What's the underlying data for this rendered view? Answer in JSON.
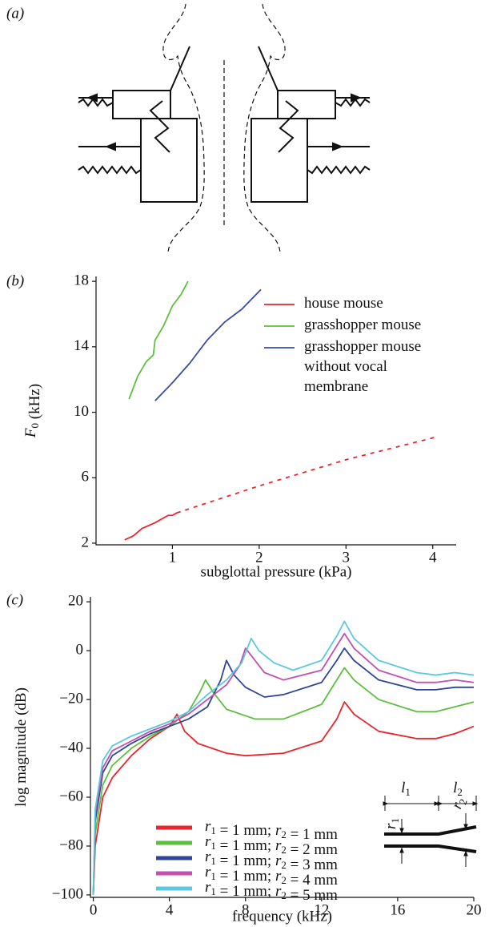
{
  "panel_a": {
    "label": "(a)"
  },
  "chart_data": [
    {
      "type": "line",
      "label": "(b)",
      "xlabel": "subglottal pressure (kPa)",
      "ylabel": "F0 (kHz)",
      "xlim": [
        0.12,
        4.27
      ],
      "xticks": [
        1,
        2,
        3,
        4
      ],
      "ylim": [
        1.9,
        18.3
      ],
      "yticks": [
        2,
        6,
        10,
        14,
        18
      ],
      "series": [
        {
          "name": "house mouse",
          "color": "#e8262b",
          "x": [
            0.45,
            0.55,
            0.65,
            0.8,
            0.95,
            1.0,
            1.05
          ],
          "values": [
            2.2,
            2.45,
            2.9,
            3.25,
            3.7,
            3.7,
            3.85
          ]
        },
        {
          "color": "#e8262b",
          "dashed": true,
          "x": [
            1.05,
            2,
            3,
            4.05
          ],
          "values": [
            3.85,
            5.5,
            7.1,
            8.5
          ]
        },
        {
          "name": "grasshopper mouse",
          "color": "#5cbf3e",
          "x": [
            0.5,
            0.6,
            0.7,
            0.78,
            0.8,
            0.9,
            1.0,
            1.1,
            1.18
          ],
          "values": [
            10.8,
            12.2,
            13.1,
            13.5,
            14.4,
            15.3,
            16.5,
            17.2,
            18
          ]
        },
        {
          "name": "grasshopper mouse without vocal membrane",
          "color": "#3a4da0",
          "x": [
            0.8,
            1.0,
            1.2,
            1.4,
            1.6,
            1.8,
            2.02
          ],
          "values": [
            10.7,
            11.8,
            13.0,
            14.4,
            15.5,
            16.3,
            17.5
          ]
        }
      ]
    },
    {
      "type": "line",
      "label": "(c)",
      "xlabel": "frequency (kHz)",
      "ylabel": "log magnitude (dB)",
      "xlim": [
        -0.15,
        20
      ],
      "xticks": [
        0,
        4,
        8,
        12,
        16,
        20
      ],
      "ylim": [
        -101,
        22
      ],
      "yticks": [
        {
          "value": -100,
          "label": "−100"
        },
        {
          "value": -80,
          "label": "−80"
        },
        {
          "value": -60,
          "label": "−60"
        },
        {
          "value": -40,
          "label": "−40"
        },
        {
          "value": -20,
          "label": "−20"
        },
        0,
        20
      ],
      "inset": [
        "l1",
        "l2",
        "r1",
        "r2"
      ],
      "series": [
        {
          "name": "r1 = 1 mm; r2 = 1 mm",
          "color": "#e8262b",
          "x": [
            0,
            0.1,
            0.5,
            1,
            2,
            3,
            4,
            4.4,
            4.8,
            5.5,
            7,
            8,
            10,
            12,
            12.8,
            13.2,
            13.7,
            15,
            17,
            18,
            19,
            20
          ],
          "values": [
            -100,
            -80,
            -60,
            -52,
            -43,
            -36,
            -31,
            -26,
            -33,
            -38,
            -42,
            -43,
            -42,
            -37,
            -28,
            -21,
            -26,
            -33,
            -36,
            -36,
            -34,
            -31
          ]
        },
        {
          "name": "r1 = 1 mm; r2 = 2 mm",
          "color": "#5cbf3e",
          "x": [
            0,
            0.1,
            0.5,
            1,
            2,
            3,
            4,
            5,
            5.6,
            5.9,
            6.3,
            7,
            8.5,
            10,
            12,
            12.8,
            13.2,
            13.7,
            15,
            17,
            18,
            19,
            20
          ],
          "values": [
            -100,
            -75,
            -55,
            -47,
            -40,
            -35,
            -31,
            -25,
            -17,
            -12,
            -17,
            -24,
            -28,
            -28,
            -22,
            -12,
            -7,
            -12,
            -20,
            -25,
            -25,
            -23,
            -21
          ]
        },
        {
          "name": "r1 = 1 mm; r2 = 3 mm",
          "color": "#2f4597",
          "x": [
            0,
            0.1,
            0.5,
            1,
            2,
            3,
            4,
            5,
            6,
            6.7,
            7,
            7.4,
            8,
            9,
            10,
            12,
            12.8,
            13.2,
            13.7,
            15,
            17,
            18,
            19,
            20
          ],
          "values": [
            -100,
            -70,
            -50,
            -43,
            -38,
            -34,
            -31,
            -28,
            -23,
            -12,
            -4,
            -10,
            -15,
            -19,
            -18,
            -13,
            -4,
            1,
            -4,
            -12,
            -16,
            -16,
            -15,
            -15
          ]
        },
        {
          "name": "r1 = 1 mm; r2 = 4 mm",
          "color": "#c34fb0",
          "x": [
            0,
            0.1,
            0.5,
            1,
            2,
            3,
            4,
            5,
            6,
            7,
            7.7,
            8,
            8.4,
            9,
            10,
            12,
            12.8,
            13.2,
            13.7,
            15,
            17,
            18,
            19,
            20
          ],
          "values": [
            -100,
            -67,
            -48,
            -41,
            -37,
            -33,
            -30,
            -26,
            -20,
            -14,
            -6,
            1,
            -3,
            -9,
            -12,
            -8,
            2,
            7,
            1,
            -8,
            -13,
            -13,
            -12,
            -13
          ]
        },
        {
          "name": "r1 = 1 mm; r2 = 5 mm",
          "color": "#5bc8de",
          "x": [
            0,
            0.1,
            0.5,
            1,
            2,
            3,
            4,
            5,
            6,
            7,
            7.8,
            8.3,
            8.7,
            9.5,
            10.5,
            12,
            12.8,
            13.2,
            13.7,
            15,
            17,
            18,
            19,
            20
          ],
          "values": [
            -100,
            -65,
            -45,
            -39,
            -35,
            -32,
            -29,
            -25,
            -18,
            -12,
            -5,
            5,
            0,
            -5,
            -8,
            -4,
            6,
            12,
            5,
            -4,
            -9,
            -10,
            -9,
            -10
          ]
        }
      ]
    }
  ]
}
